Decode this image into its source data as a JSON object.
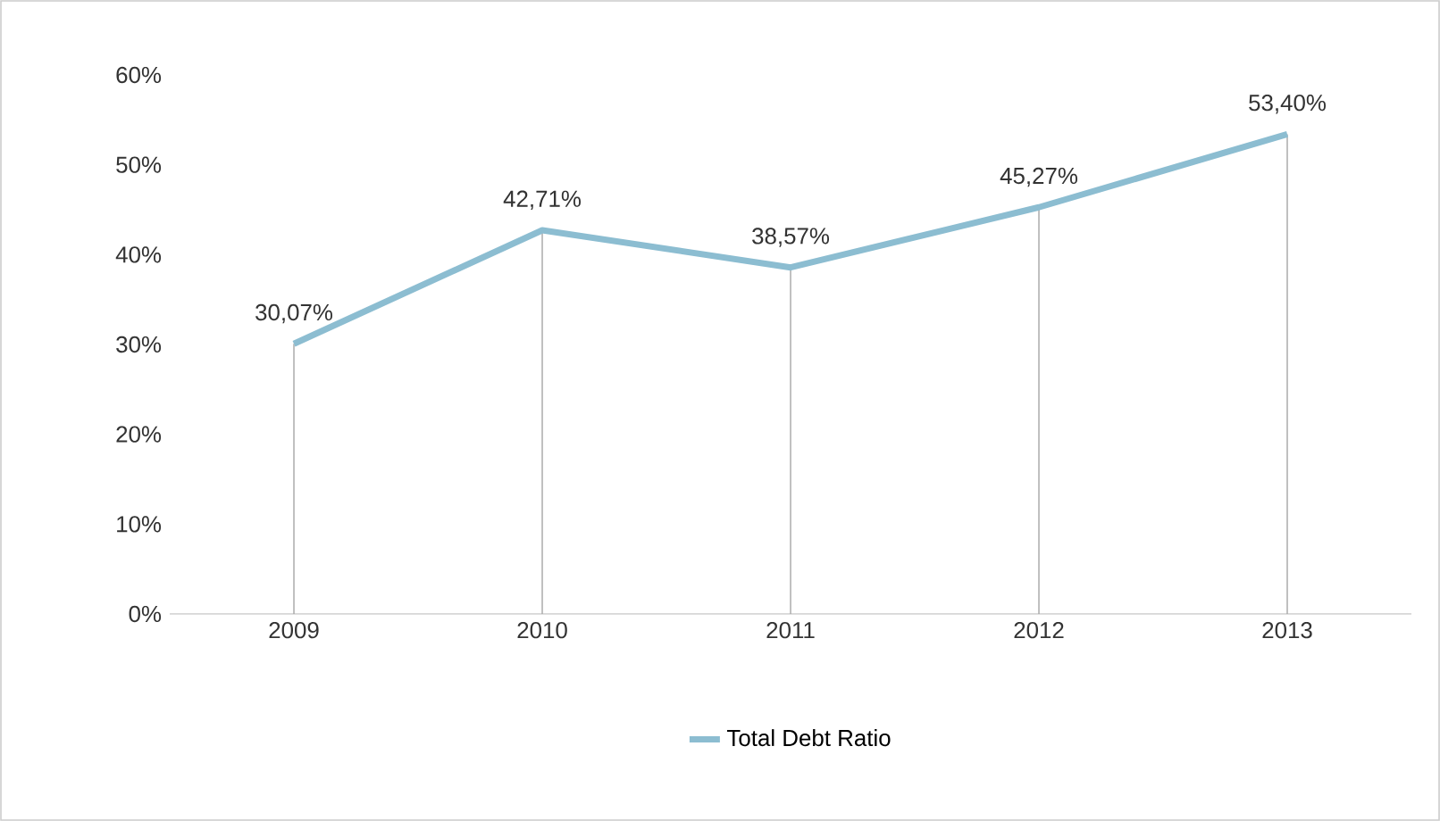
{
  "chart_data": {
    "type": "line",
    "categories": [
      "2009",
      "2010",
      "2011",
      "2012",
      "2013"
    ],
    "series": [
      {
        "name": "Total Debt Ratio",
        "color": "#8cbdd1",
        "values": [
          30.07,
          42.71,
          38.57,
          45.27,
          53.4
        ],
        "value_labels": [
          "30,07%",
          "42,71%",
          "38,57%",
          "45,27%",
          "53,40%"
        ]
      }
    ],
    "ylim": [
      0,
      60
    ],
    "yticks": [
      {
        "value": 0,
        "label": "0%"
      },
      {
        "value": 10,
        "label": "10%"
      },
      {
        "value": 20,
        "label": "20%"
      },
      {
        "value": 30,
        "label": "30%"
      },
      {
        "value": 40,
        "label": "40%"
      },
      {
        "value": 50,
        "label": "50%"
      },
      {
        "value": 60,
        "label": "60%"
      }
    ],
    "legend": "bottom",
    "marker": "none",
    "line_style": "solid",
    "grid": "x"
  }
}
